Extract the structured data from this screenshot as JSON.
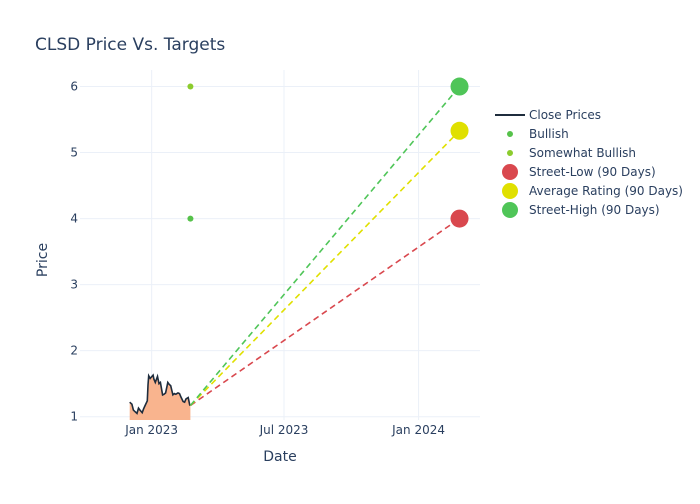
{
  "chart_data": {
    "type": "line",
    "title": "CLSD Price Vs. Targets",
    "xlabel": "Date",
    "ylabel": "Price",
    "x_ticks": [
      {
        "date": "2023-01-01",
        "label": "Jan 2023"
      },
      {
        "date": "2023-07-01",
        "label": "Jul 2023"
      },
      {
        "date": "2024-01-01",
        "label": "Jan 2024"
      }
    ],
    "y_ticks": [
      1,
      2,
      3,
      4,
      5,
      6
    ],
    "xlim": [
      "2022-09-25",
      "2024-03-25"
    ],
    "ylim": [
      0.95,
      6.25
    ],
    "grid": true,
    "legend_position": "right",
    "series": [
      {
        "name": "Close Prices",
        "kind": "line",
        "color": "#1f2d3d",
        "fill_color": "#f9b48e",
        "points": [
          [
            "2022-12-02",
            1.22
          ],
          [
            "2022-12-05",
            1.19
          ],
          [
            "2022-12-07",
            1.1
          ],
          [
            "2022-12-09",
            1.08
          ],
          [
            "2022-12-12",
            1.05
          ],
          [
            "2022-12-14",
            1.13
          ],
          [
            "2022-12-16",
            1.1
          ],
          [
            "2022-12-19",
            1.06
          ],
          [
            "2022-12-21",
            1.12
          ],
          [
            "2022-12-23",
            1.17
          ],
          [
            "2022-12-26",
            1.24
          ],
          [
            "2022-12-27",
            1.48
          ],
          [
            "2022-12-28",
            1.62
          ],
          [
            "2022-12-30",
            1.58
          ],
          [
            "2023-01-03",
            1.63
          ],
          [
            "2023-01-04",
            1.57
          ],
          [
            "2023-01-06",
            1.52
          ],
          [
            "2023-01-09",
            1.61
          ],
          [
            "2023-01-11",
            1.5
          ],
          [
            "2023-01-13",
            1.52
          ],
          [
            "2023-01-16",
            1.33
          ],
          [
            "2023-01-18",
            1.34
          ],
          [
            "2023-01-20",
            1.36
          ],
          [
            "2023-01-23",
            1.52
          ],
          [
            "2023-01-25",
            1.49
          ],
          [
            "2023-01-27",
            1.47
          ],
          [
            "2023-01-30",
            1.33
          ],
          [
            "2023-02-01",
            1.35
          ],
          [
            "2023-02-03",
            1.34
          ],
          [
            "2023-02-06",
            1.36
          ],
          [
            "2023-02-08",
            1.35
          ],
          [
            "2023-02-10",
            1.3
          ],
          [
            "2023-02-13",
            1.23
          ],
          [
            "2023-02-15",
            1.22
          ],
          [
            "2023-02-17",
            1.27
          ],
          [
            "2023-02-20",
            1.29
          ],
          [
            "2023-02-22",
            1.18
          ],
          [
            "2023-02-23",
            1.17
          ]
        ]
      },
      {
        "name": "Bullish",
        "kind": "markers",
        "color": "#56c24a",
        "points": [
          [
            "2023-02-23",
            4.0
          ]
        ]
      },
      {
        "name": "Somewhat Bullish",
        "kind": "markers",
        "color": "#8ccc2e",
        "points": [
          [
            "2023-02-23",
            6.0
          ]
        ]
      },
      {
        "name": "Street-Low (90 Days)",
        "kind": "target",
        "color": "#d9484e",
        "from": [
          "2023-02-23",
          1.17
        ],
        "to": [
          "2024-02-26",
          4.0
        ]
      },
      {
        "name": "Average Rating (90 Days)",
        "kind": "target",
        "color": "#e0e000",
        "from": [
          "2023-02-23",
          1.17
        ],
        "to": [
          "2024-02-26",
          5.33
        ]
      },
      {
        "name": "Street-High (90 Days)",
        "kind": "target",
        "color": "#4fc558",
        "from": [
          "2023-02-23",
          1.17
        ],
        "to": [
          "2024-02-26",
          6.0
        ]
      }
    ]
  }
}
